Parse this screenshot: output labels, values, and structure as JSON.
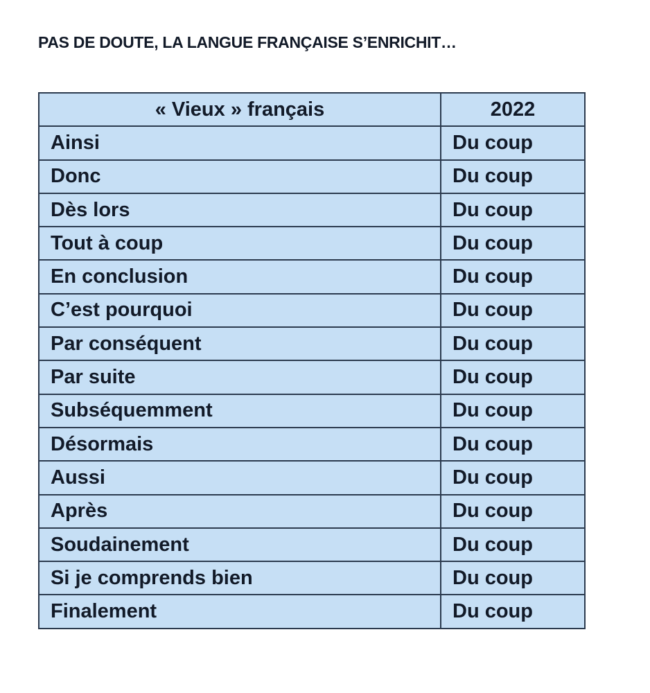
{
  "title": "PAS DE DOUTE, LA LANGUE FRANÇAISE S’ENRICHIT…",
  "table": {
    "headers": [
      "« Vieux » français",
      "2022"
    ],
    "rows": [
      [
        "Ainsi",
        "Du coup"
      ],
      [
        "Donc",
        "Du coup"
      ],
      [
        "Dès lors",
        "Du coup"
      ],
      [
        "Tout à coup",
        "Du coup"
      ],
      [
        "En conclusion",
        "Du coup"
      ],
      [
        "C’est pourquoi",
        "Du coup"
      ],
      [
        "Par conséquent",
        "Du coup"
      ],
      [
        "Par suite",
        "Du coup"
      ],
      [
        "Subséquemment",
        "Du coup"
      ],
      [
        "Désormais",
        "Du coup"
      ],
      [
        "Aussi",
        "Du coup"
      ],
      [
        "Après",
        "Du coup"
      ],
      [
        "Soudainement",
        "Du coup"
      ],
      [
        "Si je comprends bien",
        "Du coup"
      ],
      [
        "Finalement",
        "Du coup"
      ]
    ]
  },
  "colors": {
    "cell_background": "#c6dff5",
    "text": "#121a28",
    "border": "#2b3a4e"
  }
}
